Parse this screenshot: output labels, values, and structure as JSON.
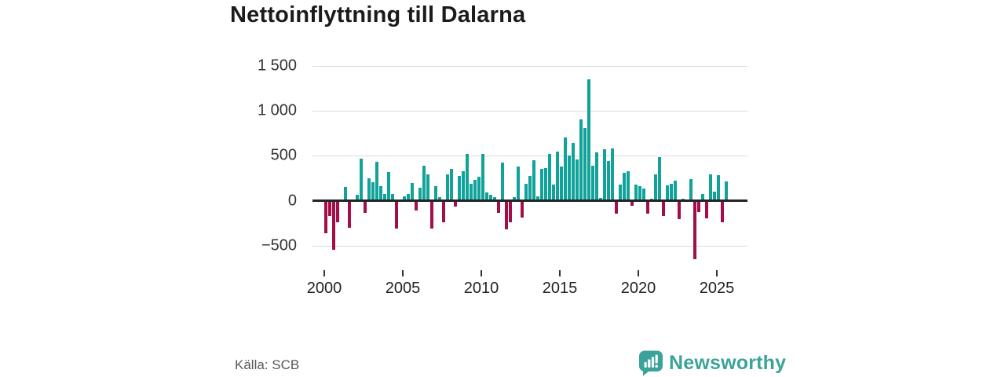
{
  "title": "Nettoinflyttning till Dalarna",
  "source": "Källa: SCB",
  "logo": {
    "label": "Newsworthy"
  },
  "colors": {
    "positive_bar": "#11a29a",
    "negative_bar": "#a30d49",
    "brand": "#3ba39a",
    "gridline": "#dcdcdc",
    "zero_axis": "#222426"
  },
  "chart_data": {
    "type": "bar",
    "title": "Nettoinflyttning till Dalarna",
    "frequency": "quarterly",
    "start_period": "2000-Q1",
    "x_tick_labels": [
      "2000",
      "2005",
      "2010",
      "2015",
      "2020",
      "2025"
    ],
    "y_tick_labels": [
      "1 500",
      "1 000",
      "500",
      "0",
      "−500"
    ],
    "y_ticks": [
      1500,
      1000,
      500,
      0,
      -500
    ],
    "ylim": [
      -700,
      1600
    ],
    "grid": true,
    "legend": false,
    "series": [
      {
        "name": "Nettoinflyttning",
        "values": [
          -350,
          -160,
          -530,
          -230,
          10,
          150,
          -290,
          10,
          65,
          470,
          -120,
          250,
          205,
          430,
          160,
          75,
          320,
          70,
          -300,
          10,
          50,
          75,
          200,
          -100,
          145,
          385,
          290,
          -300,
          160,
          35,
          -230,
          290,
          350,
          -55,
          275,
          330,
          520,
          185,
          230,
          270,
          515,
          95,
          65,
          40,
          -120,
          420,
          -305,
          -225,
          35,
          375,
          -170,
          190,
          275,
          445,
          50,
          350,
          365,
          515,
          180,
          545,
          380,
          705,
          500,
          640,
          455,
          900,
          810,
          1345,
          390,
          540,
          30,
          570,
          440,
          580,
          -135,
          180,
          310,
          330,
          -40,
          175,
          160,
          135,
          -130,
          25,
          295,
          480,
          -155,
          170,
          190,
          225,
          -195,
          20,
          15,
          240,
          -635,
          -110,
          75,
          -185,
          290,
          100,
          280,
          -225,
          210
        ]
      }
    ]
  }
}
